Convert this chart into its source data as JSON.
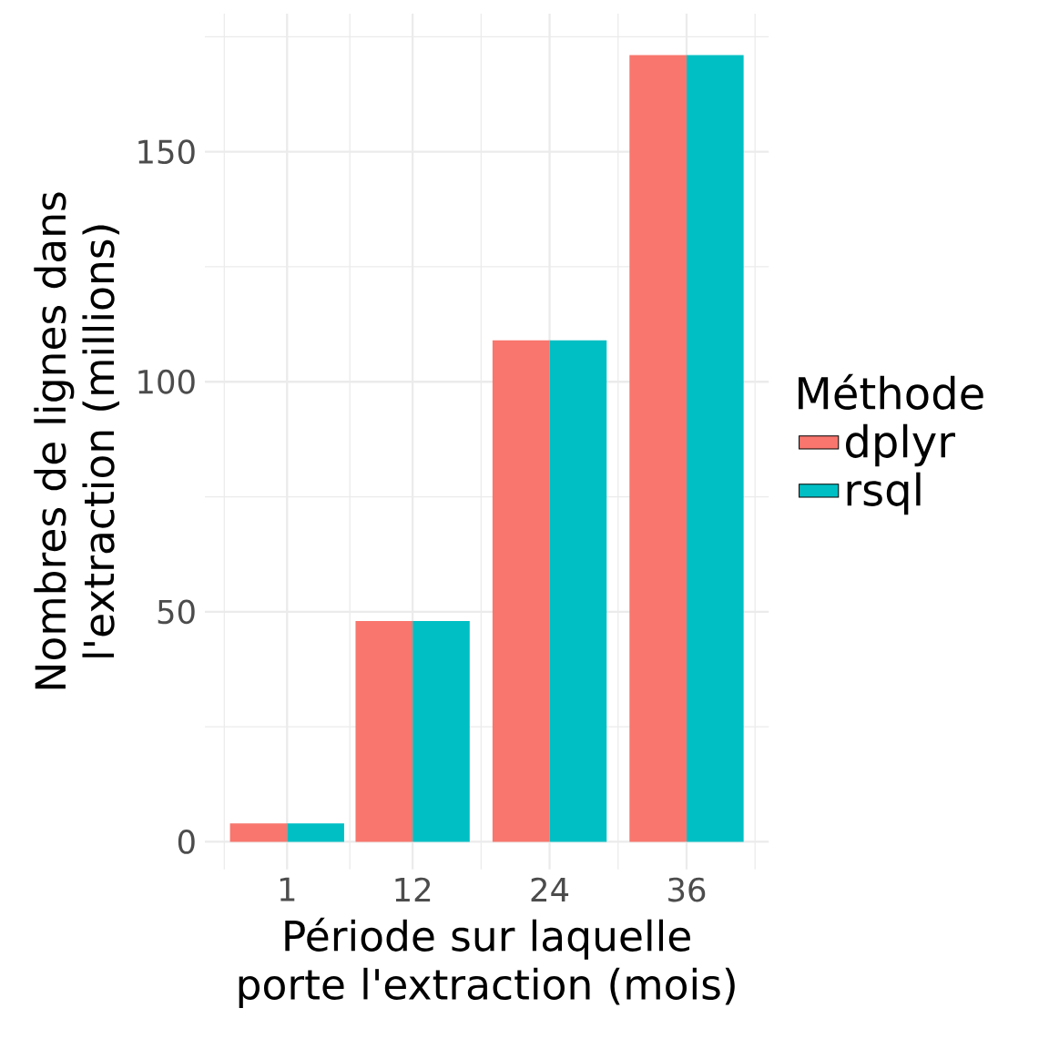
{
  "chart_data": {
    "type": "bar",
    "xlabel": "Période sur laquelle porte l'extraction (mois)",
    "ylabel": "Nombres de lignes dans l'extraction (millions)",
    "legend_title": "Méthode",
    "x": [
      1,
      12,
      24,
      36
    ],
    "series": [
      {
        "name": "dplyr",
        "color": "#f8766d",
        "values": [
          4,
          48,
          109,
          171
        ]
      },
      {
        "name": "rsql",
        "color": "#00bfc4",
        "values": [
          4,
          48,
          109,
          171
        ]
      }
    ],
    "xlim": [
      -6.2,
      43.2
    ],
    "xticks": [
      1,
      12,
      24,
      36
    ],
    "ylim": [
      -6,
      180
    ],
    "yticks": [
      0,
      50,
      100,
      150
    ],
    "grid": true,
    "legend": "right"
  }
}
